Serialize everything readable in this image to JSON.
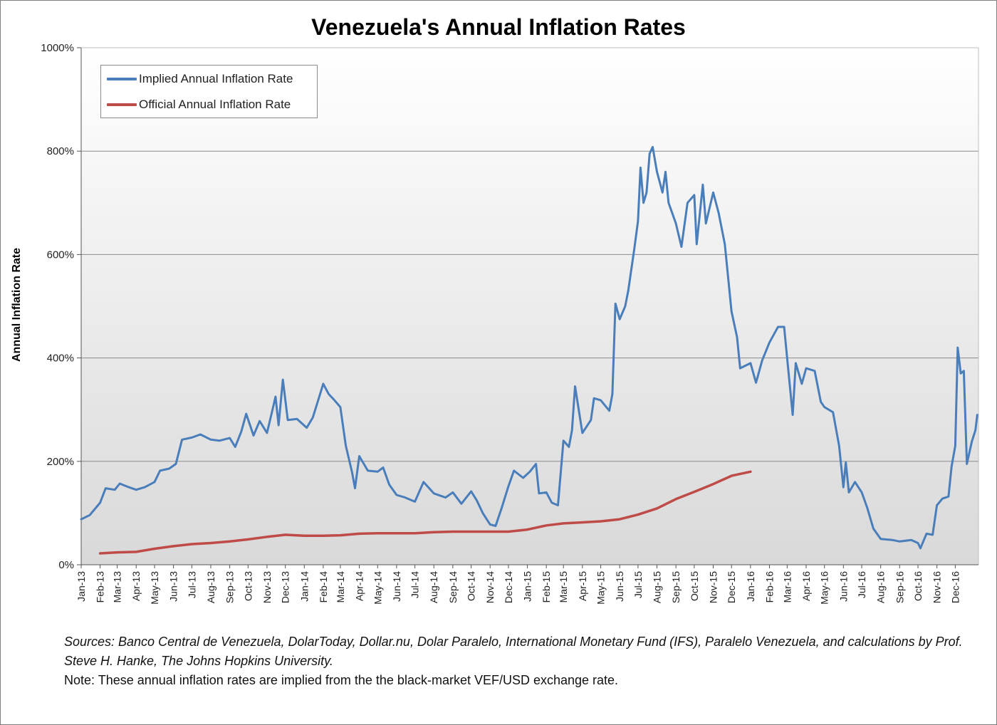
{
  "chart_data": {
    "type": "line",
    "title": "Venezuela's Annual Inflation Rates",
    "xlabel": "",
    "ylabel": "Annual Inflation Rate",
    "ylim": [
      0,
      1000
    ],
    "y_ticks": [
      "0%",
      "200%",
      "400%",
      "600%",
      "800%",
      "1000%"
    ],
    "x_ticks": [
      "Jan-13",
      "Feb-13",
      "Mar-13",
      "Apr-13",
      "May-13",
      "Jun-13",
      "Jul-13",
      "Aug-13",
      "Sep-13",
      "Oct-13",
      "Nov-13",
      "Dec-13",
      "Jan-14",
      "Feb-14",
      "Mar-14",
      "Apr-14",
      "May-14",
      "Jun-14",
      "Jul-14",
      "Aug-14",
      "Sep-14",
      "Oct-14",
      "Nov-14",
      "Dec-14",
      "Jan-15",
      "Feb-15",
      "Mar-15",
      "Apr-15",
      "May-15",
      "Jun-15",
      "Jul-15",
      "Aug-15",
      "Sep-15",
      "Oct-15",
      "Nov-15",
      "Dec-15",
      "Jan-16",
      "Feb-16",
      "Mar-16",
      "Apr-16",
      "May-16",
      "Jun-16",
      "Jul-16",
      "Aug-16",
      "Sep-16",
      "Oct-16",
      "Nov-16",
      "Dec-16"
    ],
    "grid": true,
    "legend_position": "top-left",
    "series": [
      {
        "name": "Implied Annual Inflation Rate",
        "color": "#4a7ebb",
        "points": [
          [
            "2013-01-01",
            88
          ],
          [
            "2013-01-15",
            96
          ],
          [
            "2013-02-01",
            120
          ],
          [
            "2013-02-10",
            148
          ],
          [
            "2013-02-25",
            145
          ],
          [
            "2013-03-05",
            157
          ],
          [
            "2013-03-20",
            150
          ],
          [
            "2013-04-01",
            145
          ],
          [
            "2013-04-15",
            150
          ],
          [
            "2013-05-01",
            160
          ],
          [
            "2013-05-10",
            182
          ],
          [
            "2013-05-25",
            186
          ],
          [
            "2013-06-05",
            195
          ],
          [
            "2013-06-15",
            242
          ],
          [
            "2013-07-01",
            246
          ],
          [
            "2013-07-15",
            252
          ],
          [
            "2013-08-01",
            242
          ],
          [
            "2013-08-15",
            240
          ],
          [
            "2013-09-01",
            245
          ],
          [
            "2013-09-10",
            228
          ],
          [
            "2013-09-20",
            258
          ],
          [
            "2013-09-28",
            292
          ],
          [
            "2013-10-10",
            250
          ],
          [
            "2013-10-20",
            278
          ],
          [
            "2013-11-01",
            255
          ],
          [
            "2013-11-10",
            300
          ],
          [
            "2013-11-15",
            325
          ],
          [
            "2013-11-20",
            270
          ],
          [
            "2013-11-27",
            358
          ],
          [
            "2013-12-05",
            280
          ],
          [
            "2013-12-20",
            282
          ],
          [
            "2014-01-05",
            265
          ],
          [
            "2014-01-15",
            285
          ],
          [
            "2014-01-20",
            304
          ],
          [
            "2014-02-01",
            350
          ],
          [
            "2014-02-10",
            330
          ],
          [
            "2014-02-18",
            320
          ],
          [
            "2014-03-01",
            305
          ],
          [
            "2014-03-10",
            230
          ],
          [
            "2014-03-20",
            180
          ],
          [
            "2014-03-25",
            148
          ],
          [
            "2014-04-01",
            210
          ],
          [
            "2014-04-15",
            182
          ],
          [
            "2014-05-01",
            180
          ],
          [
            "2014-05-10",
            188
          ],
          [
            "2014-05-20",
            155
          ],
          [
            "2014-06-01",
            135
          ],
          [
            "2014-06-15",
            130
          ],
          [
            "2014-07-01",
            122
          ],
          [
            "2014-07-15",
            160
          ],
          [
            "2014-08-01",
            138
          ],
          [
            "2014-08-20",
            130
          ],
          [
            "2014-09-01",
            140
          ],
          [
            "2014-09-15",
            118
          ],
          [
            "2014-10-01",
            142
          ],
          [
            "2014-10-10",
            125
          ],
          [
            "2014-10-20",
            100
          ],
          [
            "2014-11-01",
            78
          ],
          [
            "2014-11-10",
            75
          ],
          [
            "2014-11-20",
            110
          ],
          [
            "2014-12-01",
            152
          ],
          [
            "2014-12-10",
            182
          ],
          [
            "2014-12-25",
            168
          ],
          [
            "2015-01-05",
            180
          ],
          [
            "2015-01-15",
            195
          ],
          [
            "2015-01-20",
            138
          ],
          [
            "2015-02-01",
            140
          ],
          [
            "2015-02-10",
            120
          ],
          [
            "2015-02-20",
            115
          ],
          [
            "2015-03-01",
            240
          ],
          [
            "2015-03-10",
            228
          ],
          [
            "2015-03-15",
            260
          ],
          [
            "2015-03-20",
            345
          ],
          [
            "2015-04-01",
            255
          ],
          [
            "2015-04-15",
            280
          ],
          [
            "2015-04-20",
            322
          ],
          [
            "2015-05-01",
            318
          ],
          [
            "2015-05-15",
            298
          ],
          [
            "2015-05-20",
            330
          ],
          [
            "2015-05-25",
            505
          ],
          [
            "2015-06-01",
            475
          ],
          [
            "2015-06-10",
            500
          ],
          [
            "2015-06-15",
            530
          ],
          [
            "2015-06-25",
            612
          ],
          [
            "2015-07-01",
            665
          ],
          [
            "2015-07-05",
            768
          ],
          [
            "2015-07-10",
            700
          ],
          [
            "2015-07-15",
            720
          ],
          [
            "2015-07-20",
            795
          ],
          [
            "2015-07-25",
            808
          ],
          [
            "2015-08-01",
            760
          ],
          [
            "2015-08-10",
            720
          ],
          [
            "2015-08-15",
            760
          ],
          [
            "2015-08-20",
            700
          ],
          [
            "2015-09-01",
            660
          ],
          [
            "2015-09-10",
            615
          ],
          [
            "2015-09-20",
            700
          ],
          [
            "2015-10-01",
            715
          ],
          [
            "2015-10-05",
            620
          ],
          [
            "2015-10-15",
            735
          ],
          [
            "2015-10-20",
            660
          ],
          [
            "2015-11-01",
            720
          ],
          [
            "2015-11-10",
            680
          ],
          [
            "2015-11-20",
            620
          ],
          [
            "2015-12-01",
            490
          ],
          [
            "2015-12-10",
            440
          ],
          [
            "2015-12-15",
            380
          ],
          [
            "2016-01-01",
            390
          ],
          [
            "2016-01-10",
            352
          ],
          [
            "2016-01-20",
            395
          ],
          [
            "2016-02-01",
            430
          ],
          [
            "2016-02-15",
            460
          ],
          [
            "2016-02-25",
            460
          ],
          [
            "2016-03-01",
            400
          ],
          [
            "2016-03-10",
            290
          ],
          [
            "2016-03-15",
            390
          ],
          [
            "2016-03-25",
            350
          ],
          [
            "2016-04-01",
            380
          ],
          [
            "2016-04-15",
            375
          ],
          [
            "2016-04-25",
            315
          ],
          [
            "2016-05-01",
            305
          ],
          [
            "2016-05-15",
            295
          ],
          [
            "2016-05-25",
            230
          ],
          [
            "2016-06-01",
            150
          ],
          [
            "2016-06-05",
            198
          ],
          [
            "2016-06-10",
            140
          ],
          [
            "2016-06-20",
            160
          ],
          [
            "2016-07-01",
            140
          ],
          [
            "2016-07-10",
            110
          ],
          [
            "2016-07-20",
            70
          ],
          [
            "2016-08-01",
            50
          ],
          [
            "2016-08-20",
            48
          ],
          [
            "2016-09-01",
            45
          ],
          [
            "2016-09-20",
            48
          ],
          [
            "2016-10-01",
            42
          ],
          [
            "2016-10-05",
            32
          ],
          [
            "2016-10-15",
            60
          ],
          [
            "2016-10-25",
            58
          ],
          [
            "2016-11-01",
            115
          ],
          [
            "2016-11-10",
            128
          ],
          [
            "2016-11-20",
            132
          ],
          [
            "2016-11-25",
            190
          ],
          [
            "2016-12-01",
            230
          ],
          [
            "2016-12-05",
            420
          ],
          [
            "2016-12-10",
            370
          ],
          [
            "2016-12-15",
            375
          ],
          [
            "2016-12-20",
            195
          ],
          [
            "2016-12-28",
            238
          ],
          [
            "2017-01-03",
            260
          ],
          [
            "2017-01-06",
            290
          ]
        ]
      },
      {
        "name": "Official Annual Inflation Rate",
        "color": "#be4b48",
        "points": [
          [
            "2013-02-01",
            22
          ],
          [
            "2013-03-01",
            24
          ],
          [
            "2013-04-01",
            25
          ],
          [
            "2013-05-01",
            31
          ],
          [
            "2013-06-01",
            36
          ],
          [
            "2013-07-01",
            40
          ],
          [
            "2013-08-01",
            42
          ],
          [
            "2013-09-01",
            45
          ],
          [
            "2013-10-01",
            49
          ],
          [
            "2013-11-01",
            54
          ],
          [
            "2013-12-01",
            58
          ],
          [
            "2014-01-01",
            56
          ],
          [
            "2014-02-01",
            56
          ],
          [
            "2014-03-01",
            57
          ],
          [
            "2014-04-01",
            60
          ],
          [
            "2014-05-01",
            61
          ],
          [
            "2014-06-01",
            61
          ],
          [
            "2014-07-01",
            61
          ],
          [
            "2014-08-01",
            63
          ],
          [
            "2014-09-01",
            64
          ],
          [
            "2014-10-01",
            64
          ],
          [
            "2014-11-01",
            64
          ],
          [
            "2014-12-01",
            64
          ],
          [
            "2015-01-01",
            68
          ],
          [
            "2015-02-01",
            76
          ],
          [
            "2015-03-01",
            80
          ],
          [
            "2015-04-01",
            82
          ],
          [
            "2015-05-01",
            84
          ],
          [
            "2015-06-01",
            88
          ],
          [
            "2015-07-01",
            97
          ],
          [
            "2015-08-01",
            109
          ],
          [
            "2015-09-01",
            127
          ],
          [
            "2015-10-01",
            141
          ],
          [
            "2015-11-01",
            156
          ],
          [
            "2015-12-01",
            172
          ],
          [
            "2016-01-01",
            180
          ]
        ]
      }
    ]
  },
  "notes": {
    "sources": "Sources: Banco Central de Venezuela, DolarToday, Dollar.nu, Dolar Paralelo, International Monetary Fund (IFS), Paralelo Venezuela, and calculations by Prof. Steve H. Hanke, The Johns Hopkins University.",
    "note": "Note: These annual inflation rates are implied from the the black-market VEF/USD exchange rate."
  }
}
